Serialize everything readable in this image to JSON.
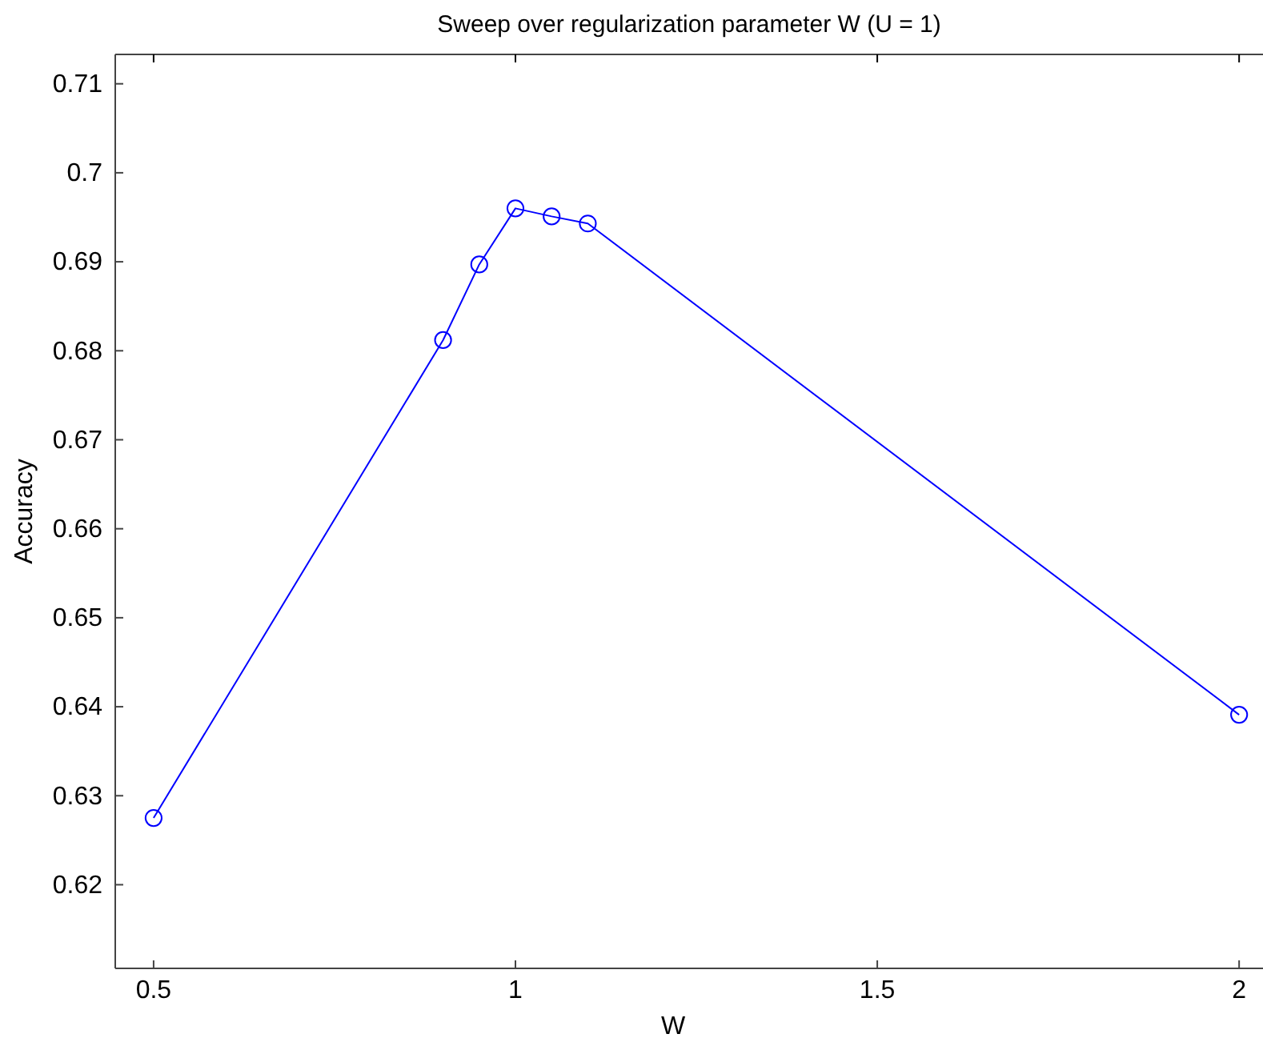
{
  "chart_data": {
    "type": "line",
    "title": "Sweep over regularization parameter W (U = 1)",
    "xlabel": "W",
    "ylabel": "Accuracy",
    "x": [
      0.5,
      0.9,
      0.95,
      1.0,
      1.05,
      1.1,
      2.0
    ],
    "series": [
      {
        "color": "#0000ff",
        "values": [
          0.6275,
          0.6812,
          0.6897,
          0.696,
          0.6951,
          0.6943,
          0.6391
        ]
      }
    ],
    "xlim": [
      0.447,
      2.033
    ],
    "xticks": [
      {
        "value": 0.5,
        "label": "0.5"
      },
      1,
      {
        "value": 1.5,
        "label": "1.5"
      },
      2
    ],
    "ylim": [
      0.6106,
      0.7133
    ],
    "yticks": [
      0.62,
      0.63,
      0.64,
      0.65,
      0.66,
      0.67,
      0.68,
      0.69,
      {
        "value": 0.7,
        "label": "0.7"
      },
      0.71
    ],
    "marker": "circle",
    "line_style": "solid",
    "grid": false
  }
}
